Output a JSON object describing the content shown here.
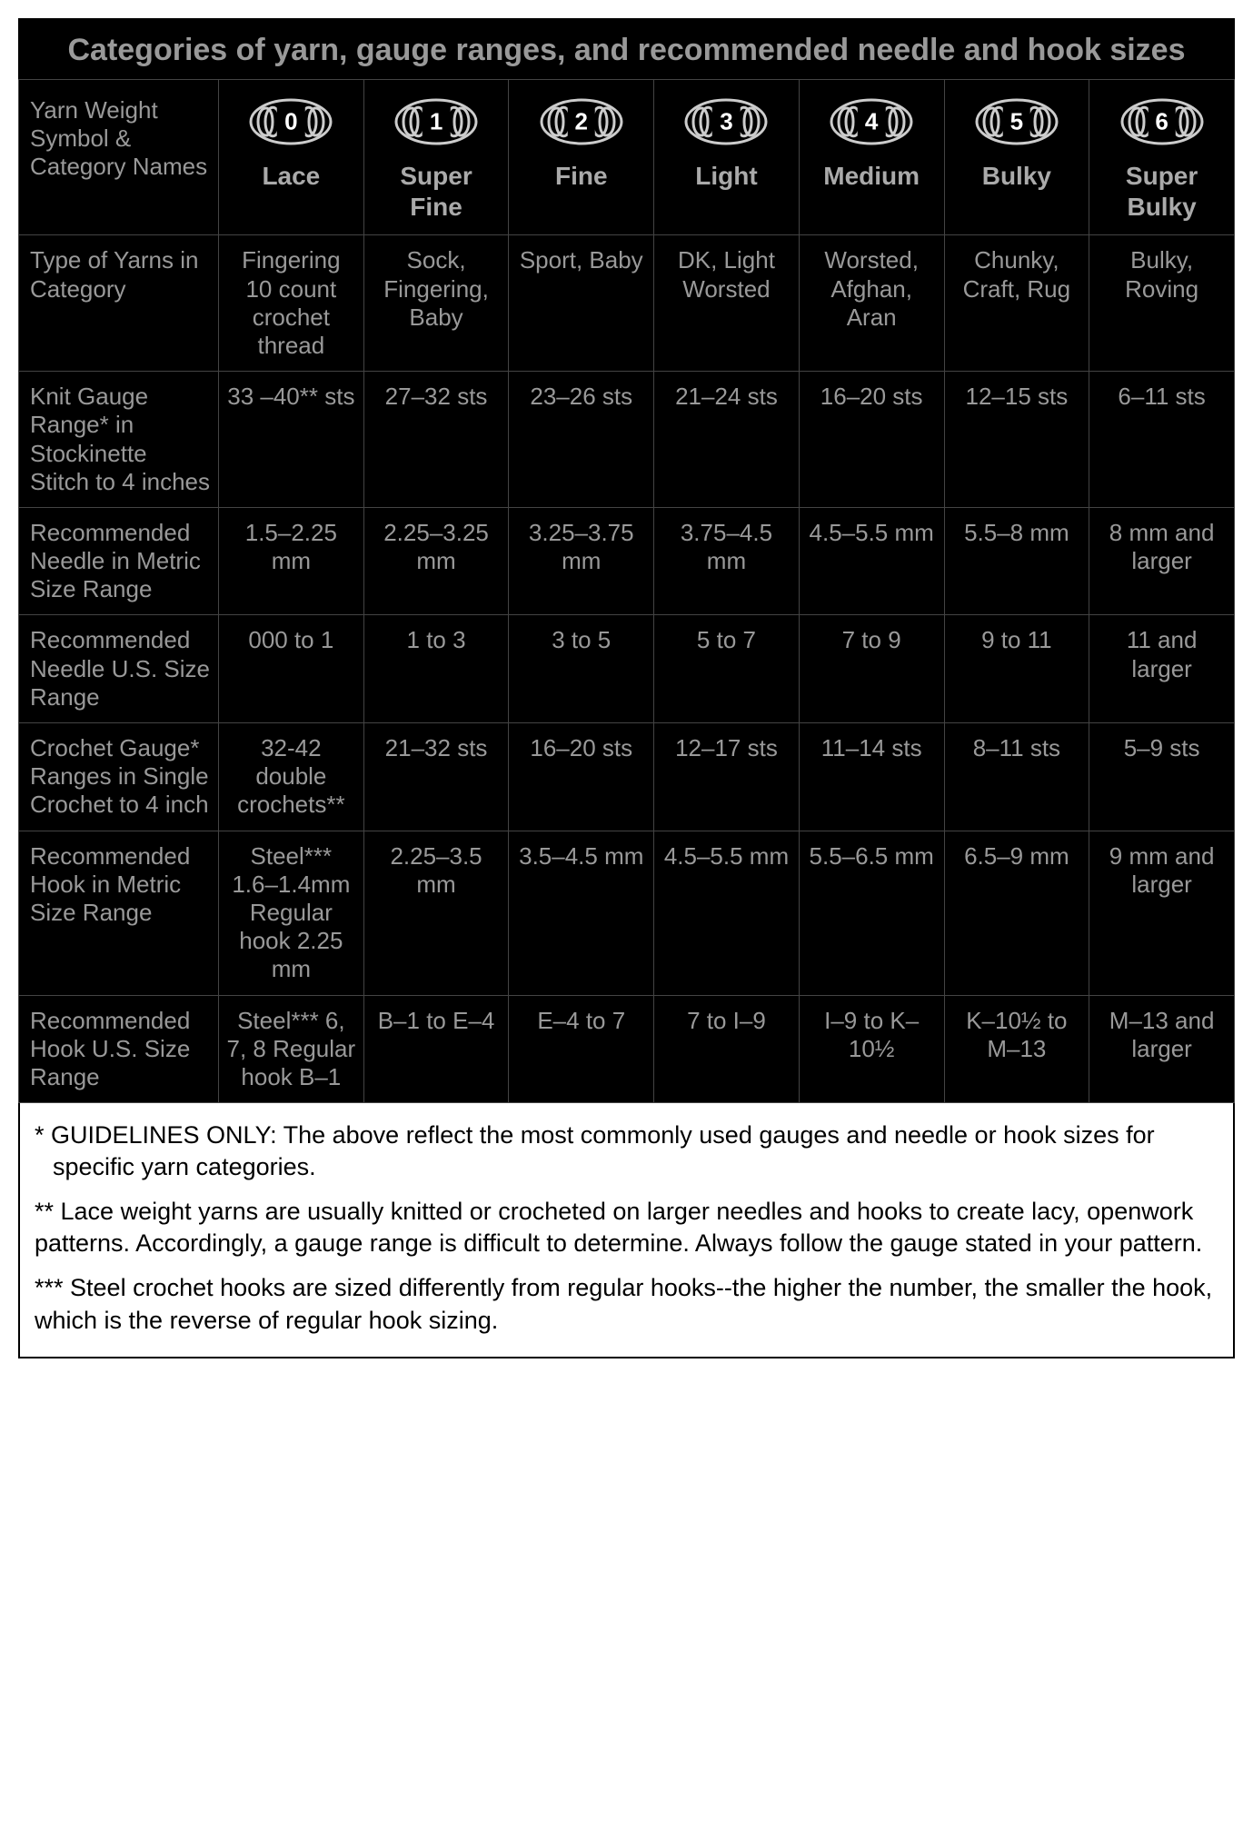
{
  "title": "Categories of yarn, gauge ranges, and recommended needle and hook sizes",
  "colors": {
    "bg": "#000000",
    "fg": "#999999",
    "border": "#444444",
    "footnote_bg": "#ffffff",
    "footnote_fg": "#000000",
    "yarn_stroke": "#cccccc"
  },
  "header_rowlabel": "Yarn Weight Symbol & Category Names",
  "categories": [
    {
      "num": "0",
      "name": "Lace"
    },
    {
      "num": "1",
      "name": "Super Fine"
    },
    {
      "num": "2",
      "name": "Fine"
    },
    {
      "num": "3",
      "name": "Light"
    },
    {
      "num": "4",
      "name": "Medium"
    },
    {
      "num": "5",
      "name": "Bulky"
    },
    {
      "num": "6",
      "name": "Super Bulky"
    }
  ],
  "rows": [
    {
      "label": "Type of Yarns in Category",
      "cells": [
        "Fingering 10 count crochet thread",
        "Sock, Fingering, Baby",
        "Sport, Baby",
        "DK, Light Worsted",
        "Worsted, Afghan, Aran",
        "Chunky, Craft, Rug",
        "Bulky, Roving"
      ]
    },
    {
      "label": "Knit Gauge Range* in Stockinette Stitch to 4 inches",
      "cells": [
        "33 –40** sts",
        "27–32 sts",
        "23–26 sts",
        "21–24 sts",
        "16–20 sts",
        "12–15 sts",
        "6–11 sts"
      ]
    },
    {
      "label": "Recommended Needle in Metric Size Range",
      "cells": [
        "1.5–2.25 mm",
        "2.25–3.25 mm",
        "3.25–3.75 mm",
        "3.75–4.5 mm",
        "4.5–5.5 mm",
        "5.5–8 mm",
        "8 mm and larger"
      ]
    },
    {
      "label": "Recommended Needle U.S. Size Range",
      "cells": [
        "000 to 1",
        "1 to 3",
        "3 to 5",
        "5 to 7",
        "7 to 9",
        "9 to 11",
        "11 and larger"
      ]
    },
    {
      "label": "Crochet Gauge* Ranges in Single Crochet to 4 inch",
      "cells": [
        "32-42 double crochets**",
        "21–32 sts",
        "16–20 sts",
        "12–17 sts",
        "11–14 sts",
        "8–11 sts",
        "5–9 sts"
      ]
    },
    {
      "label": "Recommended Hook in Metric Size Range",
      "cells": [
        "Steel*** 1.6–1.4mm Regular hook 2.25 mm",
        "2.25–3.5 mm",
        "3.5–4.5 mm",
        "4.5–5.5 mm",
        "5.5–6.5 mm",
        "6.5–9 mm",
        "9 mm and larger"
      ]
    },
    {
      "label": "Recommended Hook U.S. Size Range",
      "cells": [
        "Steel*** 6, 7, 8 Regular hook B–1",
        "B–1 to E–4",
        "E–4 to 7",
        "7 to I–9",
        "I–9 to K–10½",
        "K–10½ to M–13",
        "M–13 and larger"
      ]
    }
  ],
  "footnotes": [
    "* GUIDELINES ONLY: The above reflect the most commonly used gauges and needle or hook sizes for specific yarn categories.",
    "** Lace weight yarns are usually knitted or crocheted on larger needles and hooks to create lacy, openwork patterns. Accordingly, a gauge range is difficult to determine. Always follow the gauge stated in your pattern.",
    "*** Steel crochet hooks are sized differently from regular hooks--the higher the number, the smaller the hook, which is the reverse of regular hook sizing."
  ]
}
